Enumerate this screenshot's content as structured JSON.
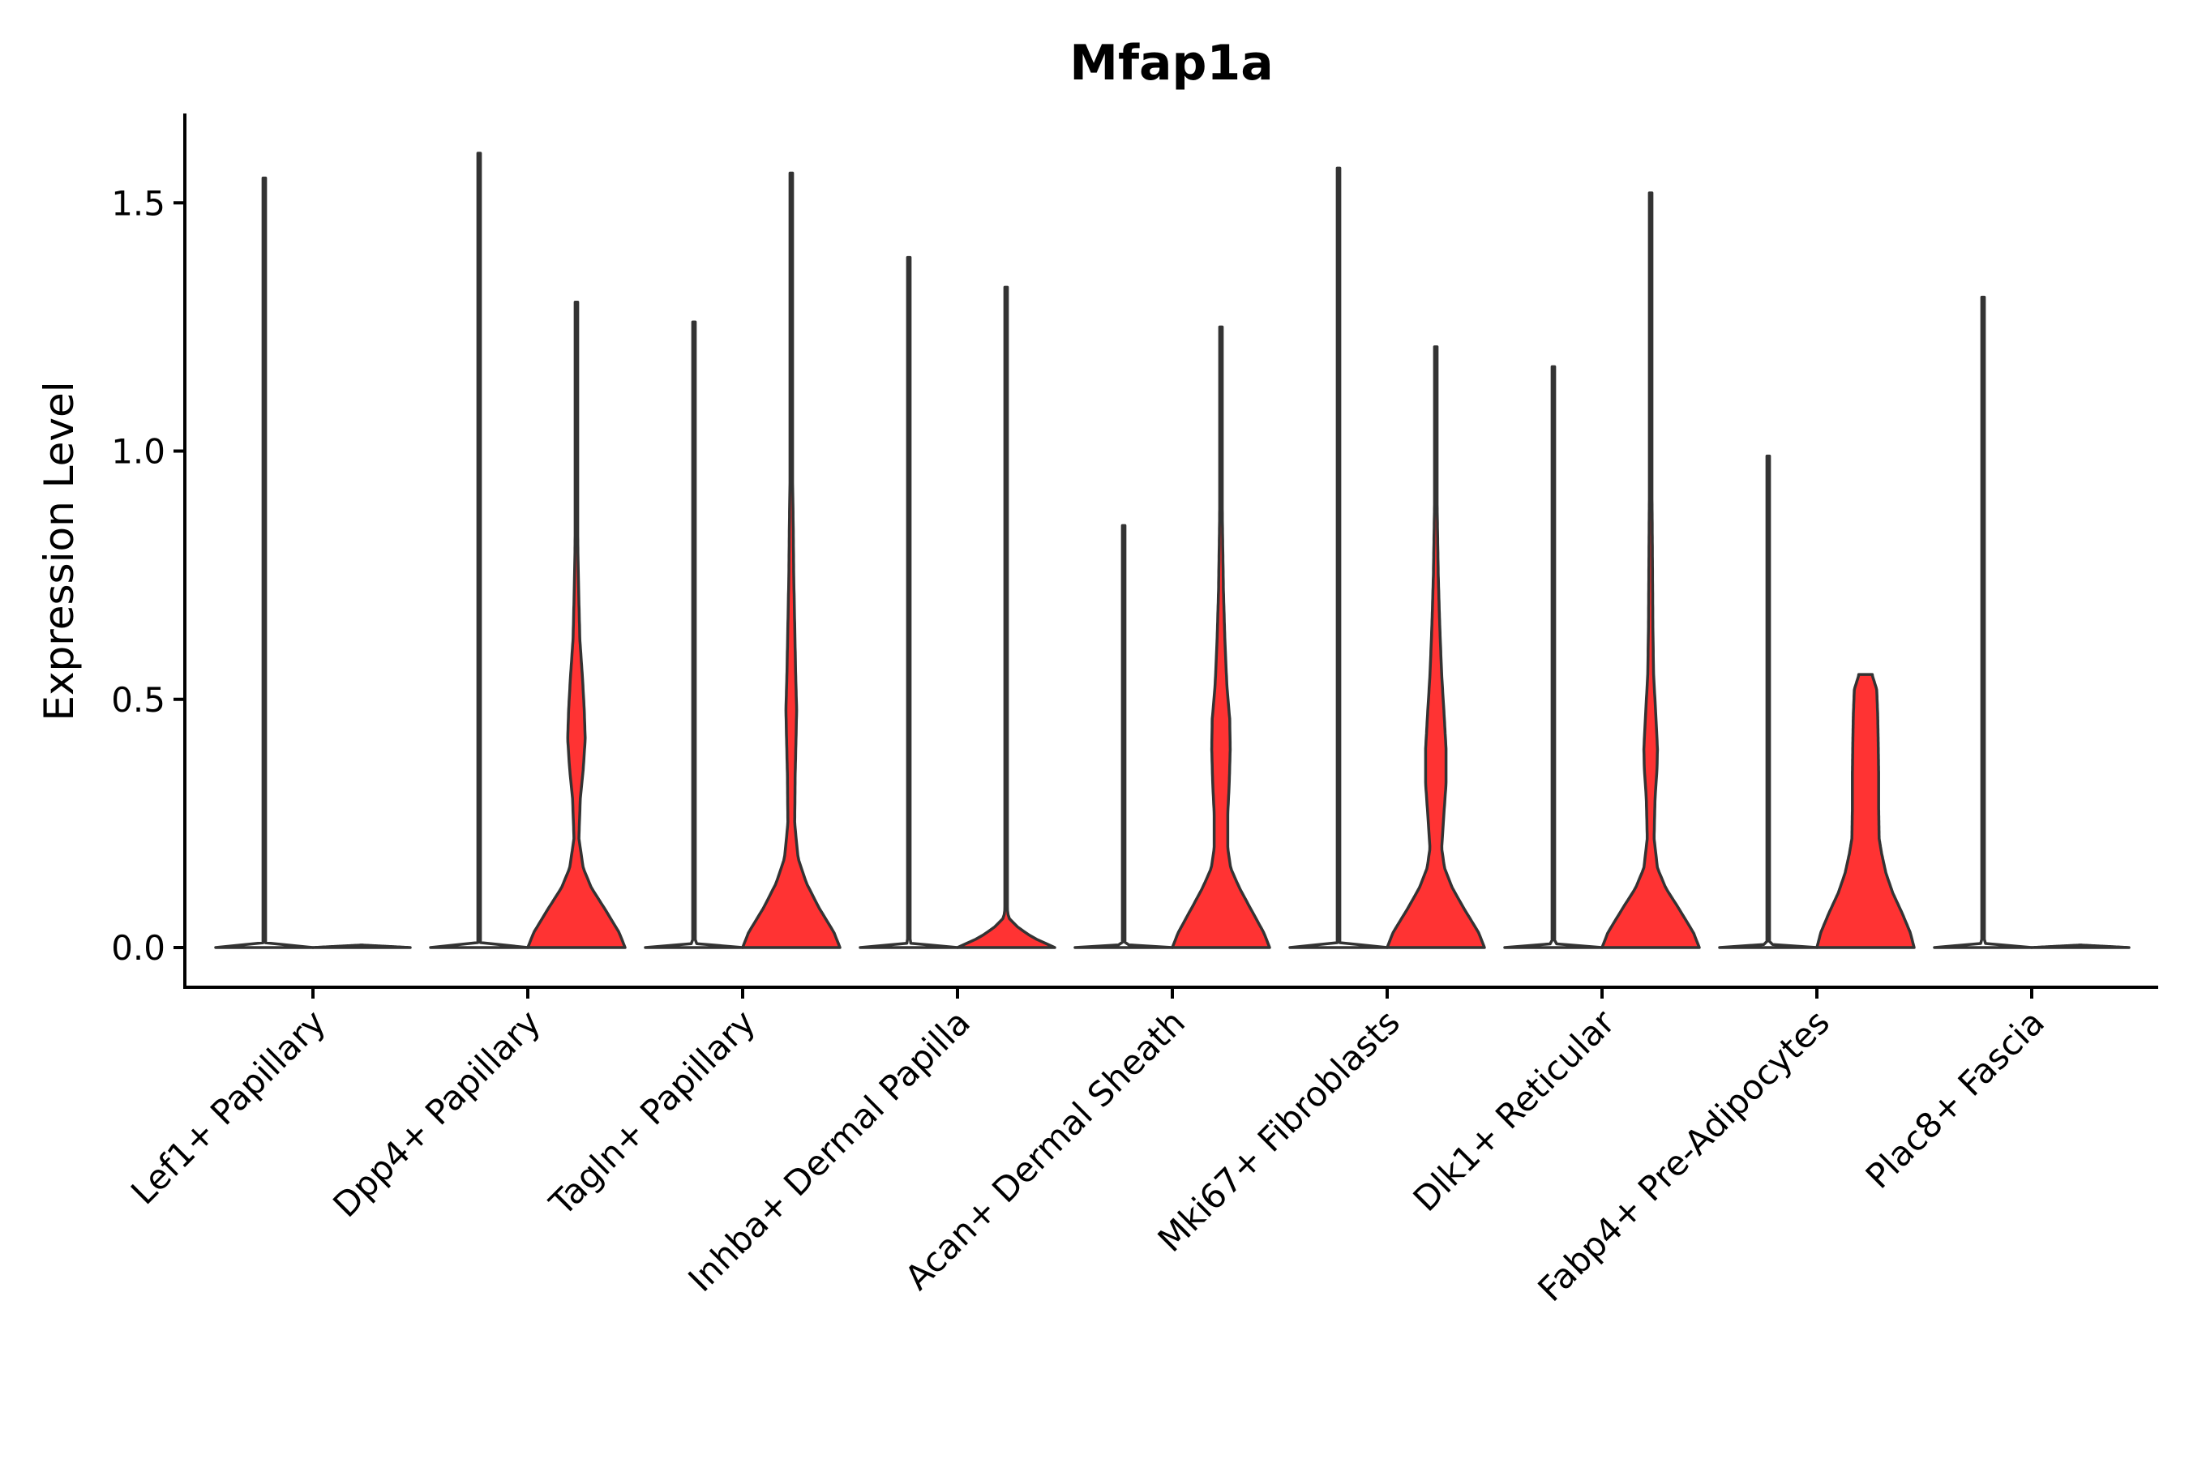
{
  "chart_data": {
    "type": "violin",
    "title": "Mfap1a",
    "xlabel": "",
    "ylabel": "Expression Level",
    "ylim": [
      -0.08,
      1.68
    ],
    "yticks": [
      0.0,
      0.5,
      1.0,
      1.5
    ],
    "ytick_labels": [
      "0.0",
      "0.5",
      "1.0",
      "1.5"
    ],
    "grid": false,
    "legend": "none",
    "categories": [
      "Lef1+ Papillary",
      "Dpp4+ Papillary",
      "Tagln+ Papillary",
      "Inhba+ Dermal Papilla",
      "Acan+ Dermal Sheath",
      "Mki67+ Fibroblasts",
      "Dlk1+ Reticular",
      "Fabp4+ Pre-Adipocytes",
      "Plac8+ Fascia"
    ],
    "series": [
      {
        "fill": "#ffffff",
        "max_expression": [
          1.55,
          1.6,
          1.26,
          1.39,
          0.85,
          1.57,
          1.17,
          0.99,
          1.31
        ],
        "density_profiles": [
          [
            [
              0.0,
              1.0
            ],
            [
              0.003,
              0.2
            ],
            [
              0.01,
              0.015
            ],
            [
              1.55,
              0.01
            ]
          ],
          [
            [
              0.0,
              1.0
            ],
            [
              0.003,
              0.15
            ],
            [
              0.01,
              0.015
            ],
            [
              1.6,
              0.01
            ]
          ],
          [
            [
              0.0,
              1.0
            ],
            [
              0.003,
              0.15
            ],
            [
              0.01,
              0.015
            ],
            [
              1.26,
              0.01
            ]
          ],
          [
            [
              0.0,
              1.0
            ],
            [
              0.003,
              0.15
            ],
            [
              0.01,
              0.015
            ],
            [
              1.39,
              0.01
            ]
          ],
          [
            [
              0.0,
              1.0
            ],
            [
              0.003,
              0.15
            ],
            [
              0.01,
              0.015
            ],
            [
              0.85,
              0.01
            ]
          ],
          [
            [
              0.0,
              1.0
            ],
            [
              0.003,
              0.15
            ],
            [
              0.01,
              0.015
            ],
            [
              1.57,
              0.01
            ]
          ],
          [
            [
              0.0,
              1.0
            ],
            [
              0.003,
              0.15
            ],
            [
              0.01,
              0.015
            ],
            [
              1.17,
              0.01
            ]
          ],
          [
            [
              0.0,
              1.0
            ],
            [
              0.003,
              0.15
            ],
            [
              0.01,
              0.015
            ],
            [
              0.99,
              0.01
            ]
          ],
          [
            [
              0.0,
              1.0
            ],
            [
              0.003,
              0.15
            ],
            [
              0.01,
              0.015
            ],
            [
              1.31,
              0.01
            ]
          ]
        ]
      },
      {
        "fill": "#ff3333",
        "max_expression": [
          0.005,
          1.3,
          1.56,
          1.33,
          1.25,
          1.21,
          1.52,
          0.55,
          0.005
        ],
        "density_profiles": [
          [
            [
              0.0,
              1.0
            ],
            [
              0.005,
              0.01
            ]
          ],
          [
            [
              0.0,
              1.0
            ],
            [
              0.03,
              0.88
            ],
            [
              0.08,
              0.57
            ],
            [
              0.12,
              0.31
            ],
            [
              0.16,
              0.14
            ],
            [
              0.22,
              0.05
            ],
            [
              0.3,
              0.08
            ],
            [
              0.36,
              0.14
            ],
            [
              0.42,
              0.18
            ],
            [
              0.48,
              0.16
            ],
            [
              0.55,
              0.12
            ],
            [
              0.62,
              0.07
            ],
            [
              0.7,
              0.05
            ],
            [
              0.8,
              0.03
            ],
            [
              0.9,
              0.02
            ],
            [
              1.0,
              0.012
            ],
            [
              1.15,
              0.01
            ],
            [
              1.3,
              0.01
            ]
          ],
          [
            [
              0.0,
              1.0
            ],
            [
              0.03,
              0.88
            ],
            [
              0.08,
              0.57
            ],
            [
              0.13,
              0.31
            ],
            [
              0.18,
              0.14
            ],
            [
              0.25,
              0.07
            ],
            [
              0.35,
              0.08
            ],
            [
              0.43,
              0.1
            ],
            [
              0.48,
              0.11
            ],
            [
              0.55,
              0.09
            ],
            [
              0.65,
              0.07
            ],
            [
              0.75,
              0.05
            ],
            [
              0.85,
              0.04
            ],
            [
              0.95,
              0.025
            ],
            [
              1.1,
              0.012
            ],
            [
              1.3,
              0.01
            ],
            [
              1.56,
              0.01
            ]
          ],
          [
            [
              0.0,
              1.0
            ],
            [
              0.02,
              0.55
            ],
            [
              0.04,
              0.25
            ],
            [
              0.06,
              0.05
            ],
            [
              0.08,
              0.02
            ],
            [
              0.2,
              0.01
            ],
            [
              1.33,
              0.01
            ]
          ],
          [
            [
              0.0,
              1.0
            ],
            [
              0.03,
              0.88
            ],
            [
              0.08,
              0.6
            ],
            [
              0.12,
              0.38
            ],
            [
              0.16,
              0.2
            ],
            [
              0.2,
              0.14
            ],
            [
              0.27,
              0.14
            ],
            [
              0.33,
              0.17
            ],
            [
              0.4,
              0.19
            ],
            [
              0.46,
              0.18
            ],
            [
              0.53,
              0.12
            ],
            [
              0.62,
              0.08
            ],
            [
              0.72,
              0.05
            ],
            [
              0.85,
              0.03
            ],
            [
              1.0,
              0.015
            ],
            [
              1.25,
              0.01
            ]
          ],
          [
            [
              0.0,
              1.0
            ],
            [
              0.03,
              0.88
            ],
            [
              0.08,
              0.57
            ],
            [
              0.12,
              0.34
            ],
            [
              0.16,
              0.18
            ],
            [
              0.2,
              0.12
            ],
            [
              0.26,
              0.16
            ],
            [
              0.33,
              0.21
            ],
            [
              0.4,
              0.21
            ],
            [
              0.47,
              0.17
            ],
            [
              0.55,
              0.12
            ],
            [
              0.65,
              0.08
            ],
            [
              0.75,
              0.05
            ],
            [
              0.9,
              0.025
            ],
            [
              1.05,
              0.01
            ],
            [
              1.21,
              0.01
            ]
          ],
          [
            [
              0.0,
              1.0
            ],
            [
              0.03,
              0.88
            ],
            [
              0.08,
              0.57
            ],
            [
              0.12,
              0.31
            ],
            [
              0.16,
              0.14
            ],
            [
              0.22,
              0.07
            ],
            [
              0.3,
              0.09
            ],
            [
              0.36,
              0.13
            ],
            [
              0.4,
              0.14
            ],
            [
              0.46,
              0.11
            ],
            [
              0.55,
              0.06
            ],
            [
              0.65,
              0.045
            ],
            [
              0.8,
              0.035
            ],
            [
              1.0,
              0.02
            ],
            [
              1.2,
              0.012
            ],
            [
              1.52,
              0.01
            ]
          ],
          [
            [
              0.0,
              1.0
            ],
            [
              0.03,
              0.92
            ],
            [
              0.07,
              0.75
            ],
            [
              0.11,
              0.56
            ],
            [
              0.15,
              0.42
            ],
            [
              0.19,
              0.33
            ],
            [
              0.22,
              0.28
            ],
            [
              0.28,
              0.27
            ],
            [
              0.35,
              0.27
            ],
            [
              0.42,
              0.26
            ],
            [
              0.47,
              0.25
            ],
            [
              0.52,
              0.23
            ],
            [
              0.548,
              0.14
            ],
            [
              0.55,
              0.14
            ]
          ],
          [
            [
              0.0,
              1.0
            ],
            [
              0.005,
              0.01
            ]
          ]
        ]
      }
    ]
  }
}
